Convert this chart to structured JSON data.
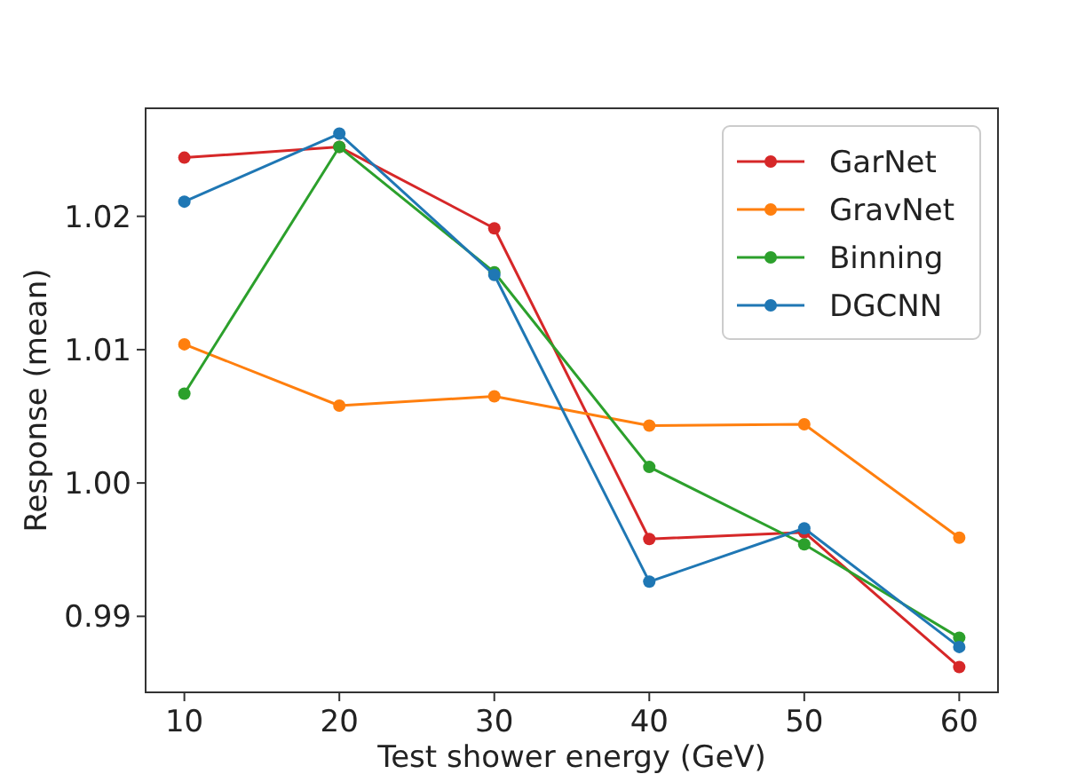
{
  "chart_data": {
    "type": "line",
    "xlabel": "Test shower energy (GeV)",
    "ylabel": "Response (mean)",
    "x": [
      10,
      20,
      30,
      40,
      50,
      60
    ],
    "series": [
      {
        "name": "GarNet",
        "color": "#d62728",
        "values": [
          1.0244,
          1.0252,
          1.0191,
          0.9958,
          0.9963,
          0.9862
        ]
      },
      {
        "name": "GravNet",
        "color": "#ff7f0e",
        "values": [
          1.0104,
          1.0058,
          1.0065,
          1.0043,
          1.0044,
          0.9959
        ]
      },
      {
        "name": "Binning",
        "color": "#2ca02c",
        "values": [
          1.0067,
          1.0252,
          1.0158,
          1.0012,
          0.9954,
          0.9884
        ]
      },
      {
        "name": "DGCNN",
        "color": "#1f77b4",
        "values": [
          1.0211,
          1.0262,
          1.0156,
          0.9926,
          0.9966,
          0.9877
        ]
      }
    ],
    "xlim": [
      7.5,
      62.5
    ],
    "xticks": [
      10,
      20,
      30,
      40,
      50,
      60
    ],
    "ylim": [
      0.9843,
      1.0281
    ],
    "yticks": [
      {
        "value": 0.99,
        "label": "0.99"
      },
      {
        "value": 1.0,
        "label": "1.00"
      },
      {
        "value": 1.01,
        "label": "1.01"
      },
      {
        "value": 1.02,
        "label": "1.02"
      }
    ],
    "grid": false,
    "legend": "top right",
    "marker": "circle",
    "line_style": "solid"
  }
}
